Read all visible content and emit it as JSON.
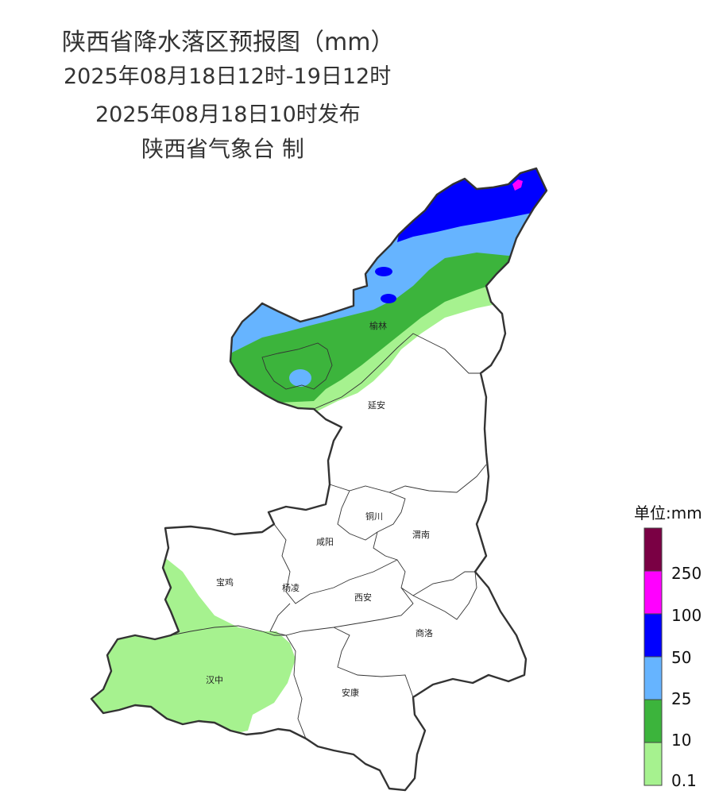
{
  "header": {
    "title": "陕西省降水落区预报图（mm）",
    "period": "2025年08月18日12时-19日12时",
    "issued": "2025年08月18日10时发布",
    "agency": "陕西省气象台 制"
  },
  "cities": {
    "yulin": "榆林",
    "yanan": "延安",
    "tongchuan": "铜川",
    "xianyang": "咸阳",
    "weinan": "渭南",
    "baoji": "宝鸡",
    "yangling": "杨凌",
    "xian": "西安",
    "shangluo": "商洛",
    "hanzhong": "汉中",
    "ankang": "安康"
  },
  "legend": {
    "title": "单位:mm",
    "labels": [
      "250",
      "100",
      "50",
      "25",
      "10",
      "0.1"
    ],
    "colors": {
      "c250": "#7a0044",
      "c100": "#ff00ff",
      "c50": "#0000ff",
      "c25": "#66b4ff",
      "c10": "#3cb43c",
      "c01": "#a6f28f"
    }
  }
}
